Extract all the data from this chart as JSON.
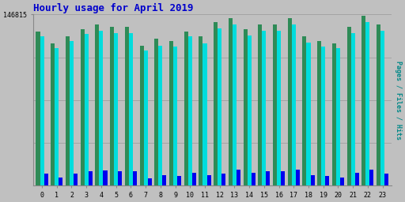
{
  "title": "Hourly usage for April 2019",
  "ylabel": "Pages / Files / Hits",
  "hours": [
    0,
    1,
    2,
    3,
    4,
    5,
    6,
    7,
    8,
    9,
    10,
    11,
    12,
    13,
    14,
    15,
    16,
    17,
    18,
    19,
    20,
    21,
    22,
    23
  ],
  "pages": [
    132000,
    122000,
    128000,
    134000,
    138000,
    136000,
    136000,
    120000,
    126000,
    124000,
    132000,
    128000,
    140000,
    144000,
    134000,
    138000,
    138000,
    144000,
    128000,
    124000,
    122000,
    136000,
    146000,
    138000
  ],
  "files": [
    128000,
    118000,
    124000,
    130000,
    133000,
    131000,
    131000,
    116000,
    120000,
    119000,
    128000,
    122000,
    135000,
    138000,
    129000,
    133000,
    133000,
    138000,
    123000,
    119000,
    118000,
    131000,
    140000,
    133000
  ],
  "hits": [
    10000,
    7000,
    10000,
    12000,
    13000,
    12000,
    12000,
    6000,
    9000,
    8000,
    11000,
    9000,
    10000,
    14000,
    11000,
    12000,
    12000,
    14000,
    9000,
    8000,
    7000,
    11000,
    14000,
    10000
  ],
  "color_pages": "#2e8b57",
  "color_files": "#00dddd",
  "color_hits": "#0000ee",
  "bg_color": "#c0c0c0",
  "plot_bg": "#c0c0c0",
  "ylim_max": 146815,
  "ytick_label": "146815",
  "title_color": "#0000cc",
  "ylabel_color": "#008888",
  "bar_width": 0.27,
  "figsize": [
    5.12,
    2.56
  ],
  "dpi": 100
}
